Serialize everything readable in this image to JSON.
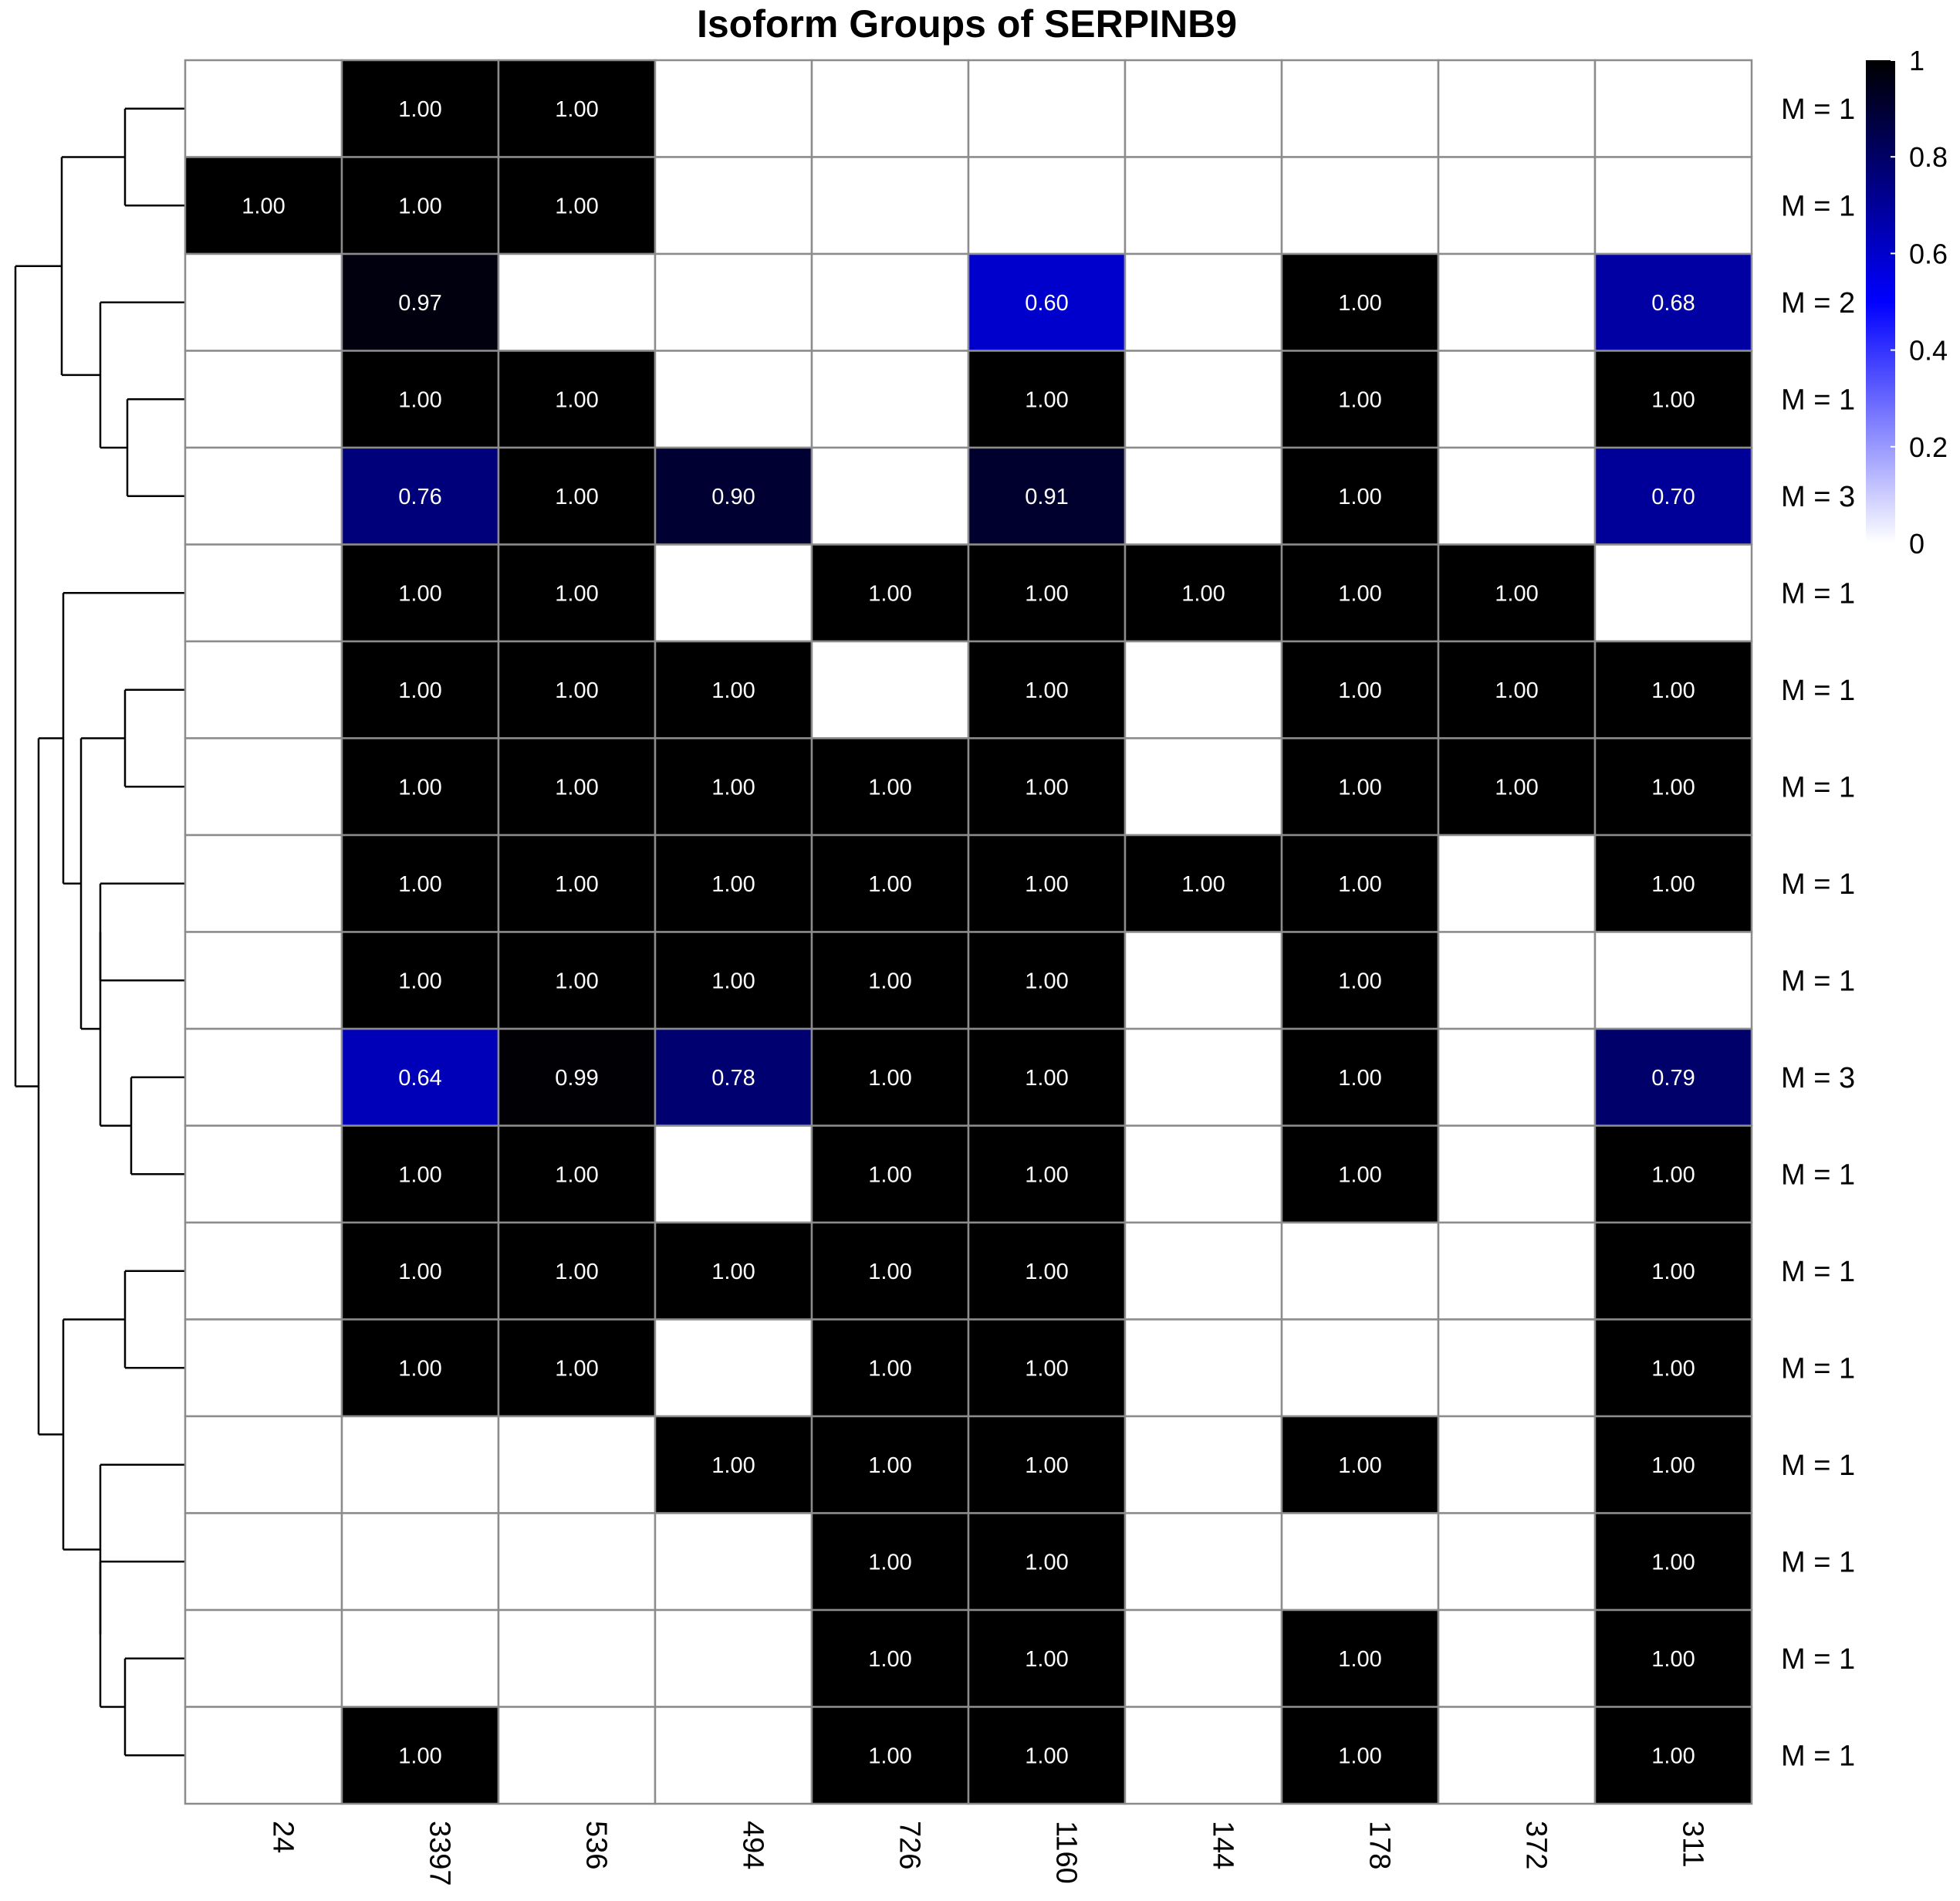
{
  "chart_data": {
    "type": "heatmap",
    "title": "Isoform Groups of SERPINB9",
    "columns": [
      "24",
      "3397",
      "536",
      "494",
      "726",
      "1160",
      "144",
      "178",
      "372",
      "311"
    ],
    "row_labels": [
      "M = 1",
      "M = 1",
      "M = 2",
      "M = 1",
      "M = 3",
      "M = 1",
      "M = 1",
      "M = 1",
      "M = 1",
      "M = 1",
      "M = 3",
      "M = 1",
      "M = 1",
      "M = 1",
      "M = 1",
      "M = 1",
      "M = 1",
      "M = 1"
    ],
    "values": [
      [
        null,
        1.0,
        1.0,
        null,
        null,
        null,
        null,
        null,
        null,
        null
      ],
      [
        1.0,
        1.0,
        1.0,
        null,
        null,
        null,
        null,
        null,
        null,
        null
      ],
      [
        null,
        0.97,
        null,
        null,
        null,
        0.6,
        null,
        1.0,
        null,
        0.68
      ],
      [
        null,
        1.0,
        1.0,
        null,
        null,
        1.0,
        null,
        1.0,
        null,
        1.0
      ],
      [
        null,
        0.76,
        1.0,
        0.9,
        null,
        0.91,
        null,
        1.0,
        null,
        0.7
      ],
      [
        null,
        1.0,
        1.0,
        null,
        1.0,
        1.0,
        1.0,
        1.0,
        1.0,
        null
      ],
      [
        null,
        1.0,
        1.0,
        1.0,
        null,
        1.0,
        null,
        1.0,
        1.0,
        1.0
      ],
      [
        null,
        1.0,
        1.0,
        1.0,
        1.0,
        1.0,
        null,
        1.0,
        1.0,
        1.0
      ],
      [
        null,
        1.0,
        1.0,
        1.0,
        1.0,
        1.0,
        1.0,
        1.0,
        null,
        1.0
      ],
      [
        null,
        1.0,
        1.0,
        1.0,
        1.0,
        1.0,
        null,
        1.0,
        null,
        null
      ],
      [
        null,
        0.64,
        0.99,
        0.78,
        1.0,
        1.0,
        null,
        1.0,
        null,
        0.79
      ],
      [
        null,
        1.0,
        1.0,
        null,
        1.0,
        1.0,
        null,
        1.0,
        null,
        1.0
      ],
      [
        null,
        1.0,
        1.0,
        1.0,
        1.0,
        1.0,
        null,
        null,
        null,
        1.0
      ],
      [
        null,
        1.0,
        1.0,
        null,
        1.0,
        1.0,
        null,
        null,
        null,
        1.0
      ],
      [
        null,
        null,
        null,
        1.0,
        1.0,
        1.0,
        null,
        1.0,
        null,
        1.0
      ],
      [
        null,
        null,
        null,
        null,
        1.0,
        1.0,
        null,
        null,
        null,
        1.0
      ],
      [
        null,
        null,
        null,
        null,
        1.0,
        1.0,
        null,
        1.0,
        null,
        1.0
      ],
      [
        null,
        1.0,
        null,
        null,
        1.0,
        1.0,
        null,
        1.0,
        null,
        1.0
      ]
    ],
    "color_scale": {
      "low_color": "#ffffff",
      "mid_color": "#0000ff",
      "high_color": "#000000",
      "range": [
        0,
        1
      ],
      "ticks": [
        "0",
        "0.2",
        "0.4",
        "0.6",
        "0.8",
        "1"
      ]
    },
    "legend_position": "top-right",
    "dendrogram": "rows",
    "cell_border_color": "#8c8c8c"
  }
}
